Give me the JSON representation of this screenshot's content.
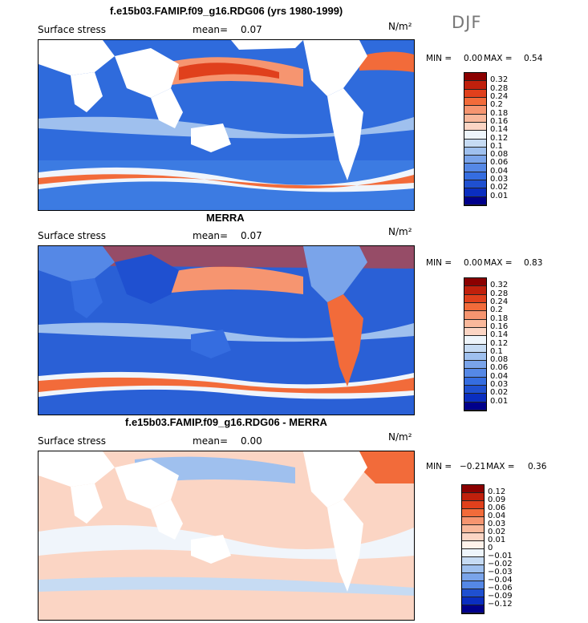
{
  "season": "DJF",
  "panels": [
    {
      "title": "f.e15b03.FAMIP.f09_g16.RDG06 (yrs 1980-1999)",
      "field": "Surface stress",
      "mean_label": "mean=",
      "mean": "0.07",
      "units": "N/m²",
      "min_label": "MIN =",
      "min": "0.00",
      "max_label": "MAX =",
      "max": "0.54",
      "colorbar": {
        "labels": [
          "0.32",
          "0.28",
          "0.24",
          "0.2",
          "0.18",
          "0.16",
          "0.14",
          "0.12",
          "0.1",
          "0.08",
          "0.06",
          "0.04",
          "0.03",
          "0.02",
          "0.01"
        ],
        "colors": [
          "#8b0000",
          "#c0200c",
          "#e0401c",
          "#f26b3a",
          "#f69570",
          "#f9b89b",
          "#fbd5c4",
          "#eef5fb",
          "#c6dbf3",
          "#9fc0ee",
          "#7aa4ea",
          "#5588e6",
          "#356de0",
          "#1f50d0",
          "#0a2ec0",
          "#00008b"
        ]
      }
    },
    {
      "title": "MERRA",
      "field": "Surface stress",
      "mean_label": "mean=",
      "mean": "0.07",
      "units": "N/m²",
      "min_label": "MIN =",
      "min": "0.00",
      "max_label": "MAX =",
      "max": "0.83",
      "colorbar": {
        "labels": [
          "0.32",
          "0.28",
          "0.24",
          "0.2",
          "0.18",
          "0.16",
          "0.14",
          "0.12",
          "0.1",
          "0.08",
          "0.06",
          "0.04",
          "0.03",
          "0.02",
          "0.01"
        ],
        "colors": [
          "#8b0000",
          "#c0200c",
          "#e0401c",
          "#f26b3a",
          "#f69570",
          "#f9b89b",
          "#fbd5c4",
          "#eef5fb",
          "#c6dbf3",
          "#9fc0ee",
          "#7aa4ea",
          "#5588e6",
          "#356de0",
          "#1f50d0",
          "#0a2ec0",
          "#00008b"
        ]
      }
    },
    {
      "title": "f.e15b03.FAMIP.f09_g16.RDG06 - MERRA",
      "field": "Surface stress",
      "mean_label": "mean=",
      "mean": "0.00",
      "units": "N/m²",
      "min_label": "MIN =",
      "min": "−0.21",
      "max_label": "MAX =",
      "max": "0.36",
      "colorbar": {
        "labels": [
          "0.12",
          "0.09",
          "0.06",
          "0.04",
          "0.03",
          "0.02",
          "0.01",
          "0",
          "−0.01",
          "−0.02",
          "−0.03",
          "−0.04",
          "−0.06",
          "−0.09",
          "−0.12"
        ],
        "colors": [
          "#8b0000",
          "#c0200c",
          "#e0401c",
          "#f26b3a",
          "#f69570",
          "#f9b89b",
          "#fbd5c4",
          "#fff2ea",
          "#eef5fb",
          "#c6dbf3",
          "#9fc0ee",
          "#7aa4ea",
          "#5588e6",
          "#1f50d0",
          "#0a2ec0",
          "#00008b"
        ]
      }
    }
  ]
}
